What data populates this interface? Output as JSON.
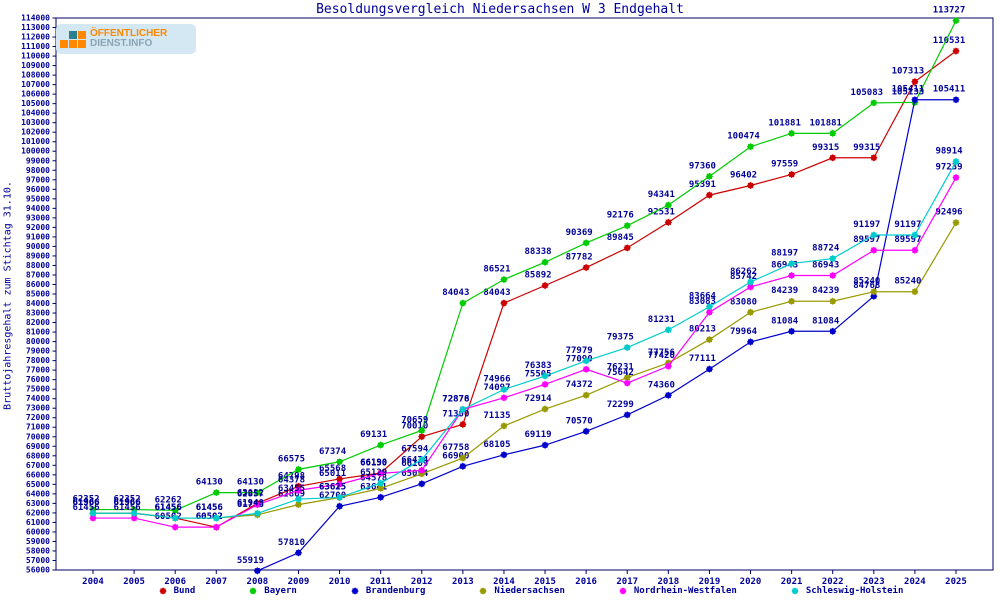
{
  "page": {
    "window_title": "Besoldungsvergleich Niedersachsen W 3 Endgehalt"
  },
  "logo": {
    "line1": "ÖFFENTLICHER",
    "line2": "DIENST.INFO",
    "bg_color": "#d3e8f2",
    "accent_color": "#ff8800",
    "secondary_color": "#8aa4b4",
    "teal_color": "#2e7f8f"
  },
  "chart_data": {
    "type": "line",
    "title": "Besoldungsvergleich Niedersachsen W 3 Endgehalt",
    "ylabel": "Bruttojahresgehalt zum Stichtag 31.10.",
    "xlabel": "",
    "x": [
      2004,
      2005,
      2006,
      2007,
      2008,
      2009,
      2010,
      2011,
      2012,
      2013,
      2014,
      2015,
      2016,
      2017,
      2018,
      2019,
      2020,
      2021,
      2022,
      2023,
      2024,
      2025
    ],
    "ylim": [
      56000,
      114000
    ],
    "ytick_step": 1000,
    "grid": false,
    "point_labels": true,
    "legend_position": "bottom",
    "axis_color": "#000066",
    "text_color": "#000099",
    "series": [
      {
        "name": "Bund",
        "color": "#cc0000",
        "values": [
          61966,
          61966,
          61456,
          60502,
          63012,
          64798,
          65568,
          66190,
          70010,
          71300,
          84043,
          85892,
          87782,
          89845,
          92531,
          95391,
          96402,
          97559,
          99315,
          99315,
          107313,
          110531
        ]
      },
      {
        "name": "Bayern",
        "color": "#00cc00",
        "values": [
          62352,
          62352,
          62262,
          64130,
          64130,
          66575,
          67374,
          69131,
          70659,
          84043,
          86521,
          88338,
          90369,
          92176,
          94341,
          97360,
          100474,
          101881,
          101881,
          105083,
          105133,
          113727
        ]
      },
      {
        "name": "Brandenburg",
        "color": "#0000cc",
        "values": [
          null,
          null,
          null,
          null,
          55919,
          57810,
          62700,
          63641,
          65054,
          66900,
          68105,
          69119,
          70570,
          72299,
          74360,
          77111,
          79964,
          81084,
          81084,
          84768,
          105411,
          105411
        ]
      },
      {
        "name": "Niedersachsen",
        "color": "#999900",
        "values": [
          61966,
          61966,
          61456,
          61456,
          61798,
          62869,
          63615,
          64578,
          66109,
          67758,
          71135,
          72914,
          74372,
          76231,
          77756,
          80213,
          83080,
          84239,
          84239,
          85240,
          85240,
          92496
        ]
      },
      {
        "name": "Nordrhein-Westfalen",
        "color": "#ff00ff",
        "values": [
          61456,
          61456,
          60502,
          60502,
          62857,
          64378,
          65011,
          66150,
          66474,
          72878,
          74097,
          75505,
          77090,
          75642,
          77420,
          83083,
          85742,
          86943,
          86943,
          89597,
          89597,
          97239
        ]
      },
      {
        "name": "Schleswig-Holstein",
        "color": "#00cccc",
        "values": [
          61966,
          61966,
          61456,
          61456,
          61948,
          63455,
          63625,
          65129,
          67594,
          72876,
          74966,
          76383,
          77979,
          79375,
          81231,
          83664,
          86262,
          88197,
          88724,
          91197,
          91197,
          98914
        ]
      }
    ]
  }
}
